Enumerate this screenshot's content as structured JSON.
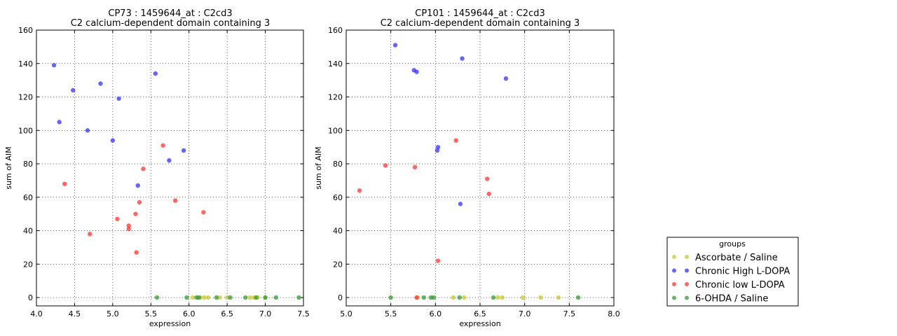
{
  "chart_data": [
    {
      "type": "scatter",
      "title": "CP73 : 1459644_at : C2cd3",
      "subtitle": "C2 calcium-dependent domain containing 3",
      "xlabel": "expression",
      "ylabel": "sum of AIM",
      "xlim": [
        4.0,
        7.5
      ],
      "ylim": [
        -5,
        160
      ],
      "xticks": [
        "4.0",
        "4.5",
        "5.0",
        "5.5",
        "6.0",
        "6.5",
        "7.0",
        "7.5"
      ],
      "yticks": [
        "0",
        "20",
        "40",
        "60",
        "80",
        "100",
        "120",
        "140",
        "160"
      ],
      "grid": true,
      "series": [
        {
          "name": "Ascorbate / Saline",
          "color": "#c8c832",
          "points": [
            [
              6.05,
              0
            ],
            [
              6.15,
              0
            ],
            [
              6.2,
              0
            ],
            [
              6.25,
              0
            ],
            [
              6.4,
              0
            ],
            [
              6.5,
              0
            ],
            [
              6.8,
              0
            ],
            [
              6.85,
              0
            ],
            [
              6.9,
              0
            ],
            [
              7.0,
              0
            ]
          ]
        },
        {
          "name": "Chronic High L-DOPA",
          "color": "#3333ff",
          "points": [
            [
              4.23,
              139
            ],
            [
              4.3,
              105
            ],
            [
              4.48,
              124
            ],
            [
              4.67,
              100
            ],
            [
              4.84,
              128
            ],
            [
              5.0,
              94
            ],
            [
              5.08,
              119
            ],
            [
              5.33,
              67
            ],
            [
              5.56,
              134
            ],
            [
              5.74,
              82
            ],
            [
              5.93,
              88
            ]
          ]
        },
        {
          "name": "Chronic low L-DOPA",
          "color": "#ff3333",
          "points": [
            [
              4.37,
              68
            ],
            [
              4.7,
              38
            ],
            [
              5.06,
              47
            ],
            [
              5.21,
              43
            ],
            [
              5.21,
              41
            ],
            [
              5.3,
              50
            ],
            [
              5.31,
              27
            ],
            [
              5.35,
              57
            ],
            [
              5.4,
              77
            ],
            [
              5.66,
              91
            ],
            [
              5.82,
              58
            ],
            [
              6.19,
              51
            ]
          ]
        },
        {
          "name": "6-OHDA / Saline",
          "color": "#339933",
          "points": [
            [
              5.58,
              0
            ],
            [
              5.97,
              0
            ],
            [
              6.1,
              0
            ],
            [
              6.13,
              0
            ],
            [
              6.36,
              0
            ],
            [
              6.54,
              0
            ],
            [
              6.74,
              0
            ],
            [
              6.88,
              0
            ],
            [
              7.0,
              0
            ],
            [
              7.14,
              0
            ],
            [
              7.44,
              0
            ]
          ]
        }
      ]
    },
    {
      "type": "scatter",
      "title": "CP101 : 1459644_at : C2cd3",
      "subtitle": "C2 calcium-dependent domain containing 3",
      "xlabel": "expression",
      "ylabel": "sum of AIM",
      "xlim": [
        5.0,
        8.0
      ],
      "ylim": [
        -5,
        160
      ],
      "xticks": [
        "5.0",
        "5.5",
        "6.0",
        "6.5",
        "7.0",
        "7.5",
        "8.0"
      ],
      "yticks": [
        "0",
        "20",
        "40",
        "60",
        "80",
        "100",
        "120",
        "140",
        "160"
      ],
      "grid": true,
      "series": [
        {
          "name": "Ascorbate / Saline",
          "color": "#c8c832",
          "points": [
            [
              5.8,
              0
            ],
            [
              6.2,
              0
            ],
            [
              6.32,
              0
            ],
            [
              6.7,
              0
            ],
            [
              6.75,
              0
            ],
            [
              6.98,
              0
            ],
            [
              7.18,
              0
            ],
            [
              7.38,
              0
            ]
          ]
        },
        {
          "name": "Chronic High L-DOPA",
          "color": "#3333ff",
          "points": [
            [
              5.55,
              151
            ],
            [
              5.76,
              136
            ],
            [
              5.79,
              135
            ],
            [
              6.02,
              88
            ],
            [
              6.03,
              90
            ],
            [
              6.28,
              56
            ],
            [
              6.3,
              143
            ],
            [
              6.79,
              131
            ]
          ]
        },
        {
          "name": "Chronic low L-DOPA",
          "color": "#ff3333",
          "points": [
            [
              5.15,
              64
            ],
            [
              5.44,
              79
            ],
            [
              5.77,
              78
            ],
            [
              5.79,
              0
            ],
            [
              6.03,
              22
            ],
            [
              6.23,
              94
            ],
            [
              6.58,
              71
            ],
            [
              6.6,
              62
            ]
          ]
        },
        {
          "name": "6-OHDA / Saline",
          "color": "#339933",
          "points": [
            [
              5.5,
              0
            ],
            [
              5.87,
              0
            ],
            [
              5.95,
              0
            ],
            [
              5.98,
              0
            ],
            [
              6.27,
              0
            ],
            [
              6.65,
              0
            ],
            [
              7.6,
              0
            ]
          ]
        }
      ]
    }
  ],
  "legend": {
    "title": "groups",
    "placement": "bottom-right",
    "items": [
      {
        "label": "Ascorbate / Saline",
        "color": "#c8c832"
      },
      {
        "label": "Chronic High L-DOPA",
        "color": "#3333ff"
      },
      {
        "label": "Chronic low L-DOPA",
        "color": "#ff3333"
      },
      {
        "label": "6-OHDA / Saline",
        "color": "#339933"
      }
    ]
  }
}
